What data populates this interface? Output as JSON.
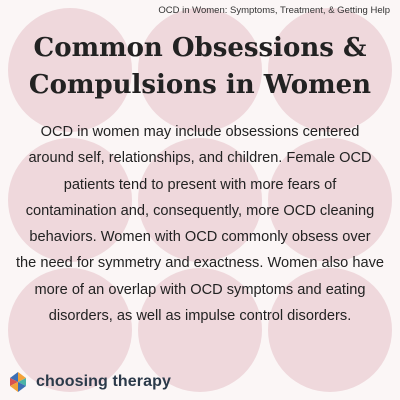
{
  "header": {
    "tag": "OCD in Women: Symptoms, Treatment, & Getting Help"
  },
  "title_lines": [
    "Common Obsessions &",
    "Compulsions in Women"
  ],
  "body_lines": [
    "OCD in women may include obsessions centered",
    "around self, relationships, and children. Female OCD",
    "patients tend to present with more fears of",
    "contamination and, consequently, more OCD cleaning",
    "behaviors. Women with OCD commonly obsess over",
    "the need for symmetry and exactness. Women also have",
    "more of an overlap with OCD symptoms and eating",
    "disorders, as well as impulse control disorders."
  ],
  "logo": {
    "text": "choosing therapy",
    "icon": "choosing-therapy-logo-icon"
  },
  "colors": {
    "background": "#fbf6f6",
    "circle": "#efd8dc",
    "text": "#222222",
    "logo_text": "#2b3a4a",
    "logo_blue": "#3d6fb4",
    "logo_orange": "#f2a23a",
    "logo_red": "#d9534f",
    "logo_teal": "#4bb3a6"
  }
}
